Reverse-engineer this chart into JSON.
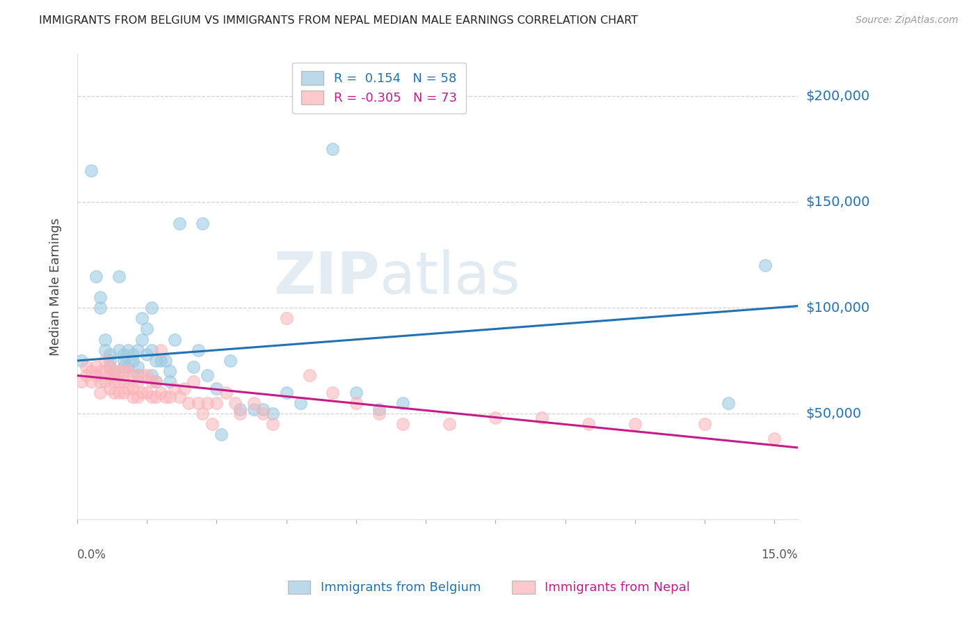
{
  "title": "IMMIGRANTS FROM BELGIUM VS IMMIGRANTS FROM NEPAL MEDIAN MALE EARNINGS CORRELATION CHART",
  "source": "Source: ZipAtlas.com",
  "ylabel": "Median Male Earnings",
  "ytick_labels": [
    "$50,000",
    "$100,000",
    "$150,000",
    "$200,000"
  ],
  "ytick_values": [
    50000,
    100000,
    150000,
    200000
  ],
  "ylim": [
    0,
    220000
  ],
  "xlim": [
    0.0,
    0.155
  ],
  "legend_label_belgium": "Immigrants from Belgium",
  "legend_label_nepal": "Immigrants from Nepal",
  "color_belgium": "#9ecae1",
  "color_nepal": "#fbb4b9",
  "line_color_belgium": "#2171b5",
  "line_color_nepal": "#c51b8a",
  "background_color": "#ffffff",
  "watermark_zip": "ZIP",
  "watermark_atlas": "atlas",
  "R_belgium": 0.154,
  "N_belgium": 58,
  "R_nepal": -0.305,
  "N_nepal": 73,
  "belgium_x": [
    0.001,
    0.003,
    0.004,
    0.005,
    0.005,
    0.006,
    0.006,
    0.007,
    0.007,
    0.007,
    0.008,
    0.008,
    0.009,
    0.009,
    0.01,
    0.01,
    0.01,
    0.011,
    0.011,
    0.012,
    0.012,
    0.013,
    0.013,
    0.013,
    0.014,
    0.014,
    0.015,
    0.015,
    0.016,
    0.016,
    0.016,
    0.017,
    0.017,
    0.018,
    0.019,
    0.02,
    0.02,
    0.021,
    0.022,
    0.025,
    0.026,
    0.027,
    0.028,
    0.03,
    0.031,
    0.033,
    0.035,
    0.038,
    0.04,
    0.042,
    0.045,
    0.048,
    0.055,
    0.06,
    0.065,
    0.07,
    0.14,
    0.148
  ],
  "belgium_y": [
    75000,
    165000,
    115000,
    105000,
    100000,
    85000,
    80000,
    78000,
    75000,
    72000,
    70000,
    68000,
    115000,
    80000,
    78000,
    75000,
    72000,
    80000,
    72000,
    78000,
    75000,
    80000,
    72000,
    68000,
    95000,
    85000,
    90000,
    78000,
    100000,
    80000,
    68000,
    75000,
    65000,
    75000,
    75000,
    70000,
    65000,
    85000,
    140000,
    72000,
    80000,
    140000,
    68000,
    62000,
    40000,
    75000,
    52000,
    52000,
    52000,
    50000,
    60000,
    55000,
    175000,
    60000,
    52000,
    55000,
    55000,
    120000
  ],
  "nepal_x": [
    0.001,
    0.002,
    0.002,
    0.003,
    0.003,
    0.004,
    0.004,
    0.005,
    0.005,
    0.005,
    0.006,
    0.006,
    0.006,
    0.007,
    0.007,
    0.007,
    0.008,
    0.008,
    0.008,
    0.009,
    0.009,
    0.009,
    0.01,
    0.01,
    0.01,
    0.011,
    0.011,
    0.012,
    0.012,
    0.012,
    0.013,
    0.013,
    0.014,
    0.014,
    0.015,
    0.015,
    0.016,
    0.016,
    0.017,
    0.017,
    0.018,
    0.018,
    0.019,
    0.02,
    0.021,
    0.022,
    0.023,
    0.024,
    0.025,
    0.026,
    0.027,
    0.028,
    0.029,
    0.03,
    0.032,
    0.034,
    0.035,
    0.038,
    0.04,
    0.042,
    0.045,
    0.05,
    0.055,
    0.06,
    0.065,
    0.07,
    0.08,
    0.09,
    0.1,
    0.11,
    0.12,
    0.135,
    0.15
  ],
  "nepal_y": [
    65000,
    72000,
    68000,
    70000,
    65000,
    72000,
    68000,
    70000,
    65000,
    60000,
    75000,
    70000,
    65000,
    72000,
    68000,
    62000,
    70000,
    65000,
    60000,
    70000,
    65000,
    60000,
    70000,
    65000,
    60000,
    70000,
    62000,
    68000,
    62000,
    58000,
    65000,
    58000,
    68000,
    60000,
    68000,
    60000,
    65000,
    58000,
    65000,
    58000,
    80000,
    60000,
    58000,
    58000,
    62000,
    58000,
    62000,
    55000,
    65000,
    55000,
    50000,
    55000,
    45000,
    55000,
    60000,
    55000,
    50000,
    55000,
    50000,
    45000,
    95000,
    68000,
    60000,
    55000,
    50000,
    45000,
    45000,
    48000,
    48000,
    45000,
    45000,
    45000,
    38000
  ]
}
